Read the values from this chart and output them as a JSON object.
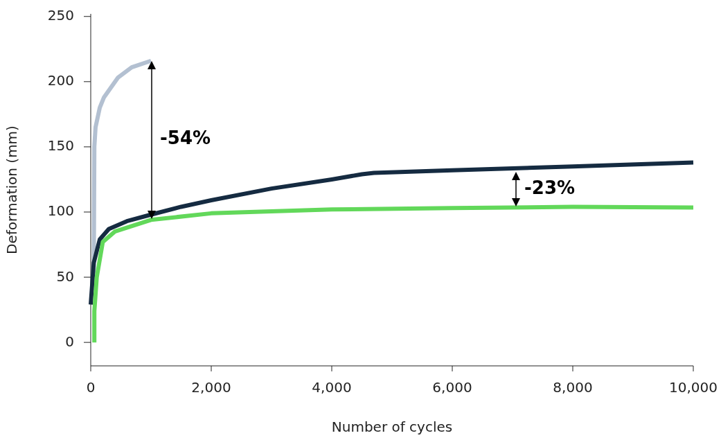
{
  "chart_data": {
    "type": "line",
    "xlabel": "Number of cycles",
    "ylabel": "Deformation (mm)",
    "xlim": [
      0,
      10000
    ],
    "xticks": [
      0,
      {
        "value": 2000,
        "label": "2,000"
      },
      {
        "value": 4000,
        "label": "4,000"
      },
      {
        "value": 6000,
        "label": "6,000"
      },
      {
        "value": 8000,
        "label": "8,000"
      },
      {
        "value": 10000,
        "label": "10,000"
      }
    ],
    "ylim": [
      -18,
      252
    ],
    "yticks": [
      0,
      50,
      100,
      150,
      200,
      250
    ],
    "grid": false,
    "line_style": "solid",
    "marker": "none",
    "series": [
      {
        "color": "#b3c0d1",
        "x": [
          50,
          55,
          60,
          80,
          150,
          220,
          450,
          680,
          1000
        ],
        "values": [
          40,
          100,
          150,
          165,
          180,
          188,
          203,
          211,
          216
        ]
      },
      {
        "color": "#152b41",
        "x": [
          0,
          50,
          150,
          300,
          600,
          1000,
          1500,
          2000,
          3000,
          4000,
          4500,
          4700,
          6000,
          8000,
          10000
        ],
        "values": [
          29,
          61,
          79,
          87,
          93,
          98,
          104,
          109,
          118,
          125,
          129,
          130,
          132,
          135,
          138
        ]
      },
      {
        "color": "#62d85a",
        "x": [
          60,
          60,
          100,
          200,
          400,
          1000,
          2000,
          4000,
          6000,
          8000,
          10000
        ],
        "values": [
          0,
          24,
          50,
          77,
          85,
          94,
          99,
          102,
          103,
          104,
          103.5
        ]
      }
    ],
    "annotations": [
      "-54%",
      "-23%"
    ]
  }
}
